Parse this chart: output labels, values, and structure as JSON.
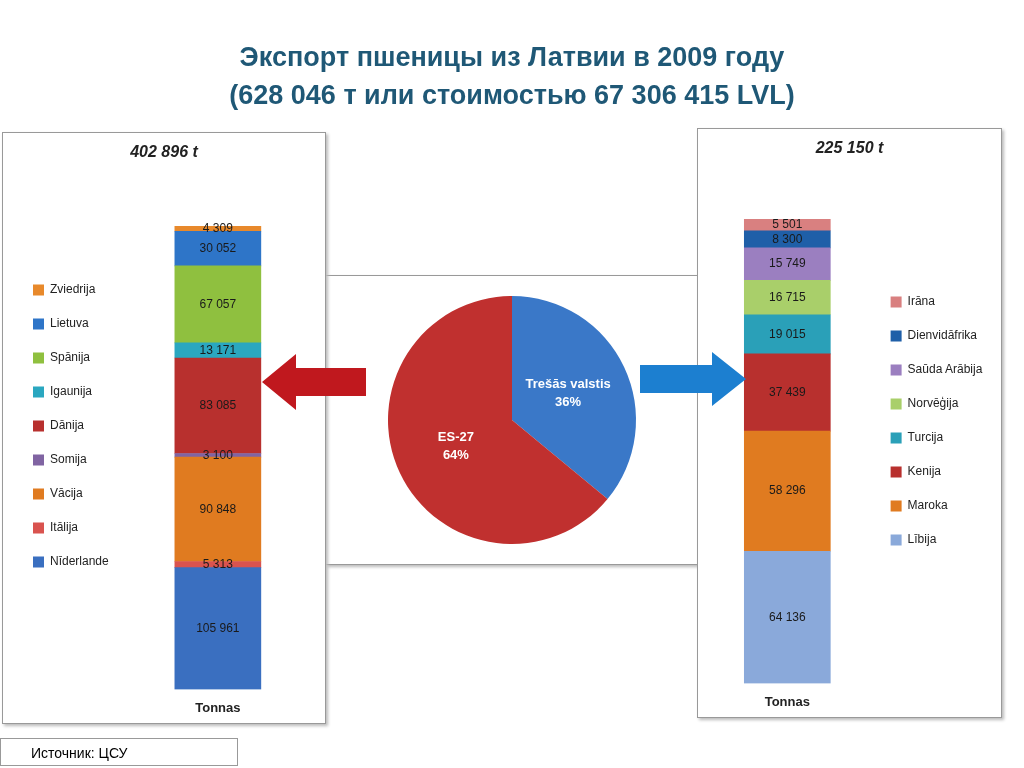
{
  "chart_data": [
    {
      "type": "pie",
      "title": "Экспорт пшеницы из Латвии в 2009 году",
      "subtitle": "(628 046 т или стоимостью 67 306 415 LVL)",
      "annotations": [
        "Источник: ЦСУ"
      ],
      "categories": [
        "Trešās valstis",
        "ES-27"
      ],
      "values": [
        36,
        64
      ],
      "colors": [
        "#3a78c8",
        "#c0302f"
      ],
      "value_labels": [
        "36%",
        "64%"
      ]
    },
    {
      "type": "bar",
      "stacked": true,
      "title": "402 896 t",
      "categories": [
        "Tonnas"
      ],
      "legend": "left",
      "tick_labels": "x",
      "grid": false,
      "series": [
        {
          "name": "Nīderlande",
          "color": "#3a6fc0",
          "values": [
            105961
          ],
          "value_labels": [
            "105 961"
          ]
        },
        {
          "name": "Itālija",
          "color": "#d9534f",
          "values": [
            5313
          ],
          "value_labels": [
            "5 313"
          ]
        },
        {
          "name": "Vācija",
          "color": "#e07b20",
          "values": [
            90848
          ],
          "value_labels": [
            "90 848"
          ]
        },
        {
          "name": "Somija",
          "color": "#8064a2",
          "values": [
            3100
          ],
          "value_labels": [
            "3 100"
          ]
        },
        {
          "name": "Dānija",
          "color": "#b8302e",
          "values": [
            83085
          ],
          "value_labels": [
            "83 085"
          ]
        },
        {
          "name": "Igaunija",
          "color": "#2aa7c0",
          "values": [
            13171
          ],
          "value_labels": [
            "13 171"
          ]
        },
        {
          "name": "Spānija",
          "color": "#8fc03f",
          "values": [
            67057
          ],
          "value_labels": [
            "67 057"
          ]
        },
        {
          "name": "Lietuva",
          "color": "#2e75c8",
          "values": [
            30052
          ],
          "value_labels": [
            "30 052"
          ]
        },
        {
          "name": "Zviedrija",
          "color": "#e8892b",
          "values": [
            4309
          ],
          "value_labels": [
            "4 309"
          ]
        }
      ]
    },
    {
      "type": "bar",
      "stacked": true,
      "title": "225 150 t",
      "categories": [
        "Tonnas"
      ],
      "legend": "right",
      "tick_labels": "x",
      "grid": false,
      "series": [
        {
          "name": "Lībija",
          "color": "#8aa9da",
          "values": [
            64136
          ],
          "value_labels": [
            "64 136"
          ]
        },
        {
          "name": "Maroka",
          "color": "#e07b20",
          "values": [
            58296
          ],
          "value_labels": [
            "58 296"
          ]
        },
        {
          "name": "Kenija",
          "color": "#b8302e",
          "values": [
            37439
          ],
          "value_labels": [
            "37 439"
          ]
        },
        {
          "name": "Turcija",
          "color": "#2aa0b8",
          "values": [
            19015
          ],
          "value_labels": [
            "19 015"
          ]
        },
        {
          "name": "Norvēģija",
          "color": "#a9cf6a",
          "values": [
            16715
          ],
          "value_labels": [
            "16 715"
          ]
        },
        {
          "name": "Saūda Arābija",
          "color": "#9b7fc0",
          "values": [
            15749
          ],
          "value_labels": [
            "15 749"
          ]
        },
        {
          "name": "Dienvidāfrika",
          "color": "#1f5fa8",
          "values": [
            8300
          ],
          "value_labels": [
            "8 300"
          ]
        },
        {
          "name": "Irāna",
          "color": "#d98080",
          "values": [
            5501
          ],
          "value_labels": [
            "5 501"
          ]
        }
      ]
    }
  ]
}
